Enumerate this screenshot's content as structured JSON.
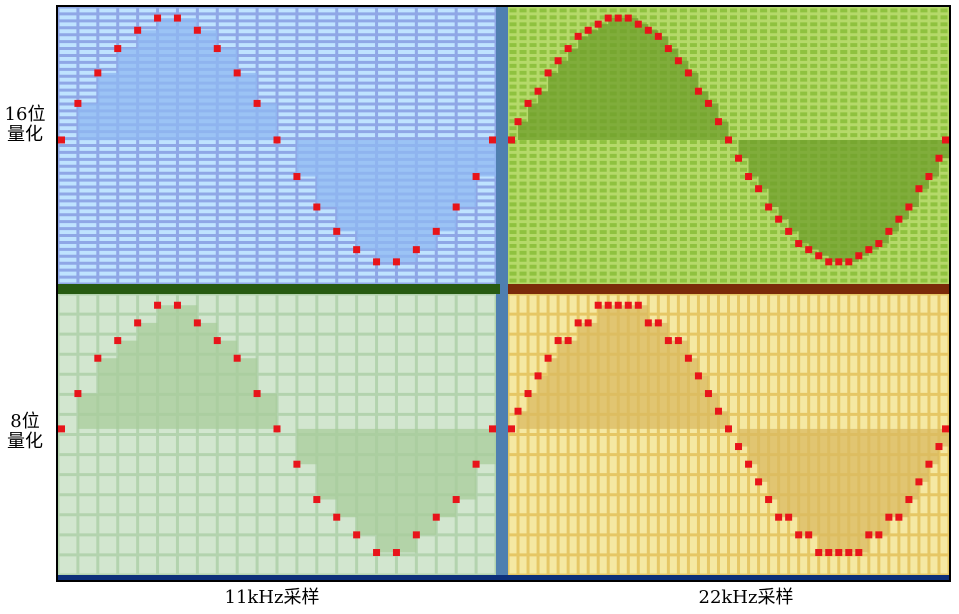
{
  "row_labels": [
    {
      "line1": "16位",
      "line2": "量化"
    },
    {
      "line1": "8位",
      "line2": "量化"
    }
  ],
  "col_labels": [
    "11kHz采样",
    "22kHz采样"
  ],
  "colors": {
    "blue_bg": "#bfe3ff",
    "blue_grid": "#8fa7e6",
    "blue_fill": "#8fb8f2",
    "green_bg": "#8fc23f",
    "green_grid": "#b5d96a",
    "green_fill": "#6f9e2c",
    "pale_bg": "#d2e6cf",
    "pale_grid": "#b3d3ae",
    "pale_fill": "#a8cc9b",
    "yellow_bg": "#f5e8a2",
    "yellow_grid": "#e6c765",
    "yellow_fill": "#d9b960",
    "sample": "#e8141a",
    "frame": "#000000"
  },
  "panels": [
    {
      "row": 0,
      "col": 0,
      "theme": "blue",
      "samples": 22,
      "levels": 40
    },
    {
      "row": 0,
      "col": 1,
      "theme": "green",
      "samples": 44,
      "levels": 40
    },
    {
      "row": 1,
      "col": 0,
      "theme": "pale",
      "samples": 22,
      "levels": 14
    },
    {
      "row": 1,
      "col": 1,
      "theme": "yellow",
      "samples": 44,
      "levels": 14
    }
  ]
}
